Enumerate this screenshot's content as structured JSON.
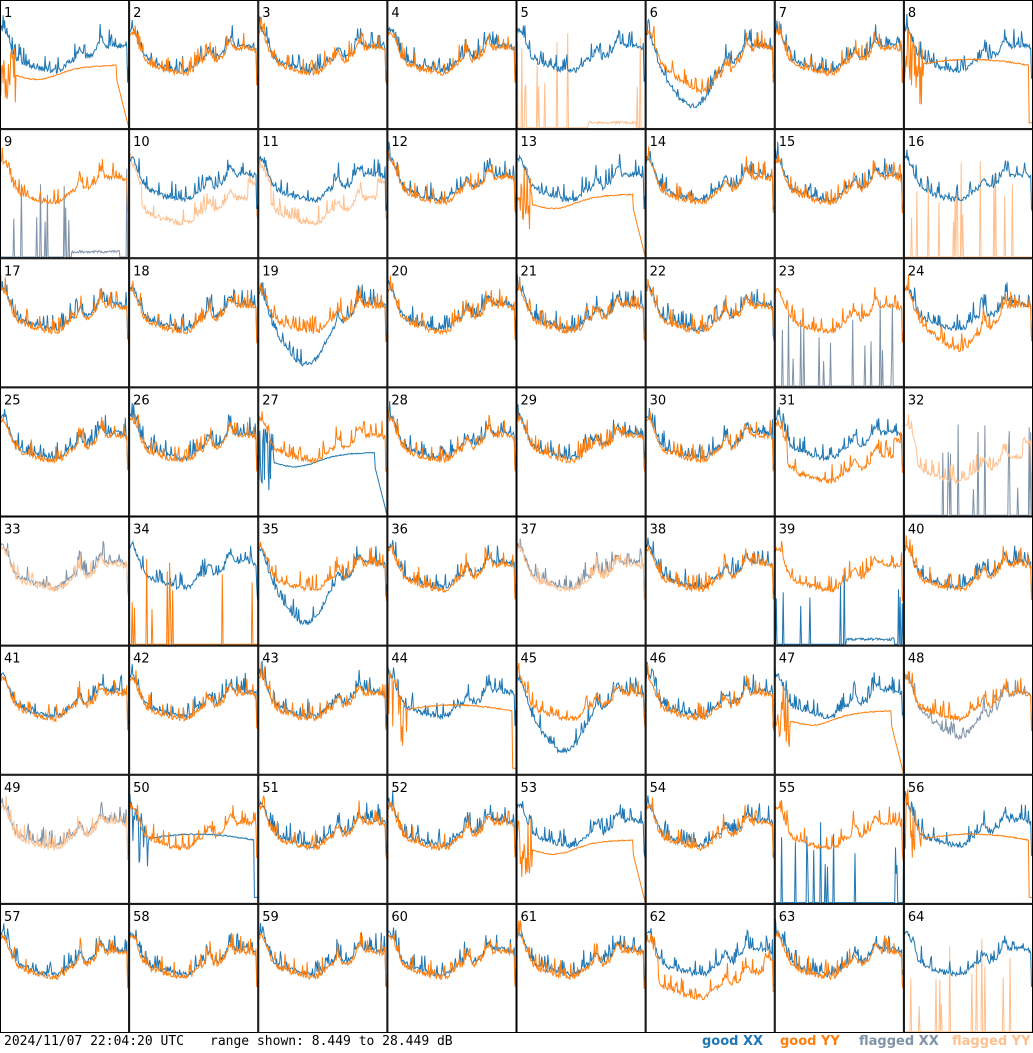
{
  "footer": {
    "timestamp": "2024/11/07 22:04:20 UTC",
    "range": "range shown: 8.449 to 28.449 dB"
  },
  "legend": [
    {
      "label": "good XX",
      "color": "#1f77b4"
    },
    {
      "label": "good YY",
      "color": "#ff7f0e"
    },
    {
      "label": "flagged XX",
      "color": "#7f93a8"
    },
    {
      "label": "flagged YY",
      "color": "#ffc08e"
    }
  ],
  "chart_data": {
    "type": "line",
    "grid": {
      "rows": 8,
      "cols": 8
    },
    "ylim": [
      8.449,
      28.449
    ],
    "yunit": "dB",
    "colors": {
      "good_xx": "#1f77b4",
      "good_yy": "#ff7f0e",
      "flagged_xx": "#7f93a8",
      "flagged_yy": "#ffc08e"
    },
    "panels": [
      {
        "label": "1",
        "xx": "good",
        "yy": "good",
        "xx_shape": "normal",
        "yy_shape": "rolloff"
      },
      {
        "label": "2",
        "xx": "good",
        "yy": "good",
        "xx_shape": "normal",
        "yy_shape": "normal"
      },
      {
        "label": "3",
        "xx": "good",
        "yy": "good",
        "xx_shape": "normal",
        "yy_shape": "normal"
      },
      {
        "label": "4",
        "xx": "good",
        "yy": "good",
        "xx_shape": "normal",
        "yy_shape": "normal"
      },
      {
        "label": "5",
        "xx": "good",
        "yy": "flagged",
        "xx_shape": "normal",
        "yy_shape": "spikes"
      },
      {
        "label": "6",
        "xx": "good",
        "yy": "good",
        "xx_shape": "deepdip",
        "yy_shape": "dip"
      },
      {
        "label": "7",
        "xx": "good",
        "yy": "good",
        "xx_shape": "normal",
        "yy_shape": "normal"
      },
      {
        "label": "8",
        "xx": "good",
        "yy": "good",
        "xx_shape": "normal",
        "yy_shape": "flat"
      },
      {
        "label": "9",
        "xx": "flagged",
        "yy": "good",
        "xx_shape": "spikes",
        "yy_shape": "normal"
      },
      {
        "label": "10",
        "xx": "good",
        "yy": "flagged",
        "xx_shape": "normal",
        "yy_shape": "low"
      },
      {
        "label": "11",
        "xx": "good",
        "yy": "flagged",
        "xx_shape": "normal",
        "yy_shape": "low"
      },
      {
        "label": "12",
        "xx": "good",
        "yy": "good",
        "xx_shape": "normal",
        "yy_shape": "normal"
      },
      {
        "label": "13",
        "xx": "good",
        "yy": "good",
        "xx_shape": "normal",
        "yy_shape": "rolloff"
      },
      {
        "label": "14",
        "xx": "good",
        "yy": "good",
        "xx_shape": "normal",
        "yy_shape": "normal"
      },
      {
        "label": "15",
        "xx": "good",
        "yy": "good",
        "xx_shape": "normal",
        "yy_shape": "normal"
      },
      {
        "label": "16",
        "xx": "good",
        "yy": "flagged",
        "xx_shape": "normal",
        "yy_shape": "spikes"
      },
      {
        "label": "17",
        "xx": "good",
        "yy": "good",
        "xx_shape": "normal",
        "yy_shape": "normal"
      },
      {
        "label": "18",
        "xx": "good",
        "yy": "good",
        "xx_shape": "normal",
        "yy_shape": "normal"
      },
      {
        "label": "19",
        "xx": "good",
        "yy": "good",
        "xx_shape": "deepdip",
        "yy_shape": "normal"
      },
      {
        "label": "20",
        "xx": "good",
        "yy": "good",
        "xx_shape": "normal",
        "yy_shape": "normal"
      },
      {
        "label": "21",
        "xx": "good",
        "yy": "good",
        "xx_shape": "normal",
        "yy_shape": "normal"
      },
      {
        "label": "22",
        "xx": "good",
        "yy": "good",
        "xx_shape": "normal",
        "yy_shape": "normal"
      },
      {
        "label": "23",
        "xx": "flagged",
        "yy": "good",
        "xx_shape": "spikes",
        "yy_shape": "normal"
      },
      {
        "label": "24",
        "xx": "good",
        "yy": "good",
        "xx_shape": "normal",
        "yy_shape": "dip"
      },
      {
        "label": "25",
        "xx": "good",
        "yy": "good",
        "xx_shape": "normal",
        "yy_shape": "normal"
      },
      {
        "label": "26",
        "xx": "good",
        "yy": "good",
        "xx_shape": "normal",
        "yy_shape": "normal"
      },
      {
        "label": "27",
        "xx": "good",
        "yy": "good",
        "xx_shape": "rolloff",
        "yy_shape": "normal"
      },
      {
        "label": "28",
        "xx": "good",
        "yy": "good",
        "xx_shape": "normal",
        "yy_shape": "normal"
      },
      {
        "label": "29",
        "xx": "good",
        "yy": "good",
        "xx_shape": "normal",
        "yy_shape": "normal"
      },
      {
        "label": "30",
        "xx": "good",
        "yy": "good",
        "xx_shape": "normal",
        "yy_shape": "normal"
      },
      {
        "label": "31",
        "xx": "good",
        "yy": "good",
        "xx_shape": "normal",
        "yy_shape": "low"
      },
      {
        "label": "32",
        "xx": "flagged",
        "yy": "flagged",
        "xx_shape": "spikes",
        "yy_shape": "low"
      },
      {
        "label": "33",
        "xx": "flagged",
        "yy": "flagged",
        "xx_shape": "normal",
        "yy_shape": "normal"
      },
      {
        "label": "34",
        "xx": "good",
        "yy": "good",
        "xx_shape": "normal",
        "yy_shape": "spikes"
      },
      {
        "label": "35",
        "xx": "good",
        "yy": "good",
        "xx_shape": "deepdip",
        "yy_shape": "normal"
      },
      {
        "label": "36",
        "xx": "good",
        "yy": "good",
        "xx_shape": "normal",
        "yy_shape": "normal"
      },
      {
        "label": "37",
        "xx": "flagged",
        "yy": "flagged",
        "xx_shape": "normal",
        "yy_shape": "normal"
      },
      {
        "label": "38",
        "xx": "good",
        "yy": "good",
        "xx_shape": "normal",
        "yy_shape": "normal"
      },
      {
        "label": "39",
        "xx": "good",
        "yy": "good",
        "xx_shape": "spikes",
        "yy_shape": "normal"
      },
      {
        "label": "40",
        "xx": "good",
        "yy": "good",
        "xx_shape": "normal",
        "yy_shape": "normal"
      },
      {
        "label": "41",
        "xx": "good",
        "yy": "good",
        "xx_shape": "normal",
        "yy_shape": "normal"
      },
      {
        "label": "42",
        "xx": "good",
        "yy": "good",
        "xx_shape": "normal",
        "yy_shape": "normal"
      },
      {
        "label": "43",
        "xx": "good",
        "yy": "good",
        "xx_shape": "normal",
        "yy_shape": "normal"
      },
      {
        "label": "44",
        "xx": "good",
        "yy": "good",
        "xx_shape": "normal",
        "yy_shape": "flat"
      },
      {
        "label": "45",
        "xx": "good",
        "yy": "good",
        "xx_shape": "deepdip",
        "yy_shape": "normal"
      },
      {
        "label": "46",
        "xx": "good",
        "yy": "good",
        "xx_shape": "normal",
        "yy_shape": "normal"
      },
      {
        "label": "47",
        "xx": "good",
        "yy": "good",
        "xx_shape": "normal",
        "yy_shape": "rolloff"
      },
      {
        "label": "48",
        "xx": "flagged",
        "yy": "good",
        "xx_shape": "dip",
        "yy_shape": "normal"
      },
      {
        "label": "49",
        "xx": "flagged",
        "yy": "flagged",
        "xx_shape": "normal",
        "yy_shape": "normal"
      },
      {
        "label": "50",
        "xx": "good",
        "yy": "good",
        "xx_shape": "flat",
        "yy_shape": "normal"
      },
      {
        "label": "51",
        "xx": "good",
        "yy": "good",
        "xx_shape": "normal",
        "yy_shape": "normal"
      },
      {
        "label": "52",
        "xx": "good",
        "yy": "good",
        "xx_shape": "normal",
        "yy_shape": "normal"
      },
      {
        "label": "53",
        "xx": "good",
        "yy": "good",
        "xx_shape": "normal",
        "yy_shape": "rolloff"
      },
      {
        "label": "54",
        "xx": "good",
        "yy": "good",
        "xx_shape": "normal",
        "yy_shape": "normal"
      },
      {
        "label": "55",
        "xx": "good",
        "yy": "good",
        "xx_shape": "spikes",
        "yy_shape": "normal"
      },
      {
        "label": "56",
        "xx": "good",
        "yy": "good",
        "xx_shape": "normal",
        "yy_shape": "flat"
      },
      {
        "label": "57",
        "xx": "good",
        "yy": "good",
        "xx_shape": "normal",
        "yy_shape": "normal"
      },
      {
        "label": "58",
        "xx": "good",
        "yy": "good",
        "xx_shape": "normal",
        "yy_shape": "normal"
      },
      {
        "label": "59",
        "xx": "good",
        "yy": "good",
        "xx_shape": "normal",
        "yy_shape": "normal"
      },
      {
        "label": "60",
        "xx": "good",
        "yy": "good",
        "xx_shape": "normal",
        "yy_shape": "normal"
      },
      {
        "label": "61",
        "xx": "good",
        "yy": "good",
        "xx_shape": "normal",
        "yy_shape": "normal"
      },
      {
        "label": "62",
        "xx": "good",
        "yy": "good",
        "xx_shape": "normal",
        "yy_shape": "low"
      },
      {
        "label": "63",
        "xx": "good",
        "yy": "good",
        "xx_shape": "normal",
        "yy_shape": "normal"
      },
      {
        "label": "64",
        "xx": "good",
        "yy": "flagged",
        "xx_shape": "normal",
        "yy_shape": "spikes"
      }
    ]
  }
}
